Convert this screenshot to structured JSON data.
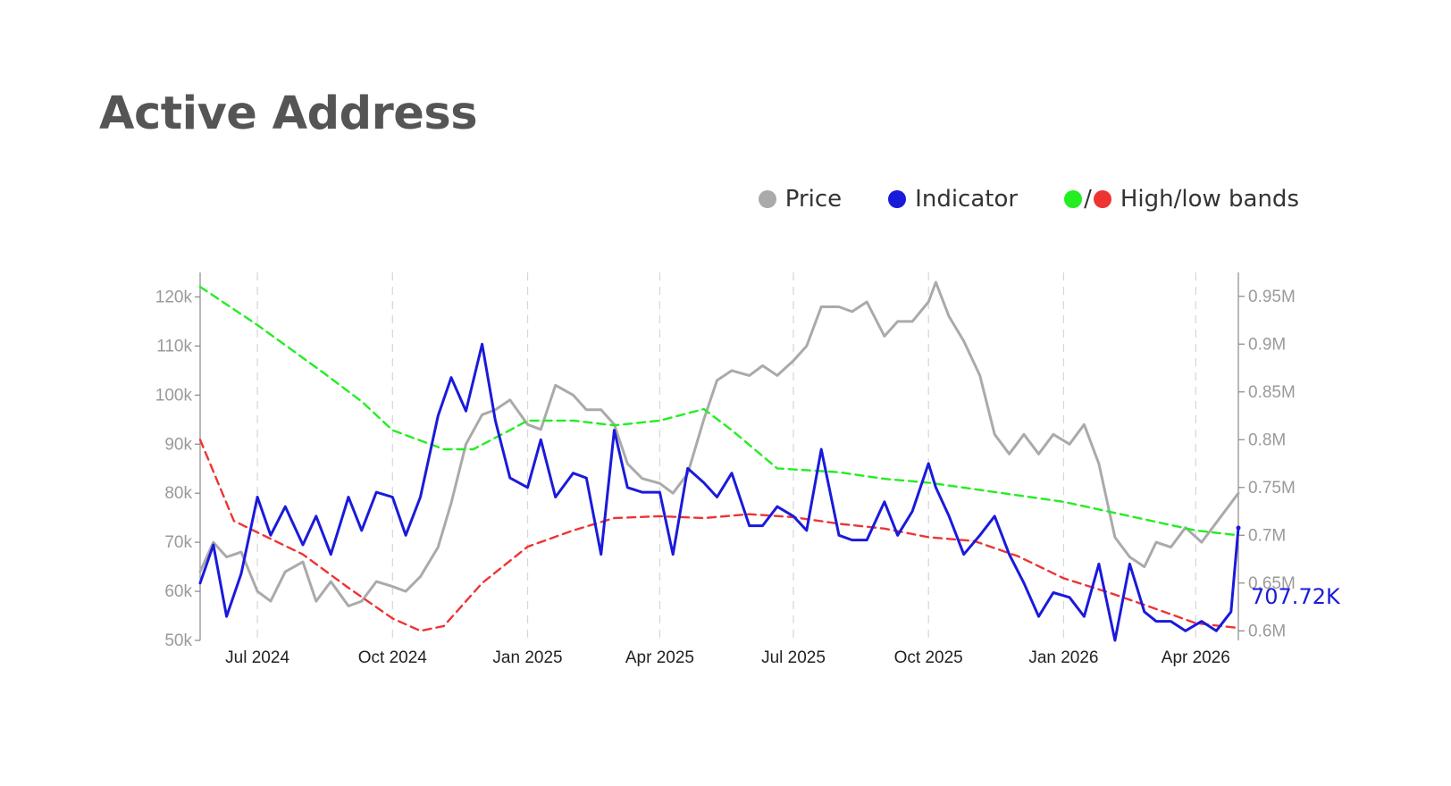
{
  "chart_data": {
    "type": "line",
    "title": "Active Address",
    "legend": {
      "placement": "top-right",
      "items": [
        {
          "label": "Price",
          "color": "#aaaaaa"
        },
        {
          "label": "Indicator",
          "color": "#1a1adb"
        },
        {
          "label": "High/low bands",
          "colors": [
            "#22ee22",
            "#ee3333"
          ]
        }
      ]
    },
    "x_ticks": [
      "Jul 2024",
      "Oct 2024",
      "Jan 2025",
      "Apr 2025",
      "Jul 2025",
      "Oct 2025",
      "Jan 2026",
      "Apr 2026"
    ],
    "x_tick_dates": [
      "2024-07-01",
      "2024-10-01",
      "2025-01-01",
      "2025-04-01",
      "2025-07-01",
      "2025-10-01",
      "2026-01-01",
      "2026-04-01"
    ],
    "x_range": [
      "2024-05-23",
      "2026-04-30"
    ],
    "y_left": {
      "ticks": [
        "50k",
        "60k",
        "70k",
        "80k",
        "90k",
        "100k",
        "110k",
        "120k"
      ],
      "tick_values": [
        50000,
        60000,
        70000,
        80000,
        90000,
        100000,
        110000,
        120000
      ],
      "range": [
        50000,
        125000
      ]
    },
    "y_right": {
      "ticks": [
        "0.6M",
        "0.65M",
        "0.7M",
        "0.75M",
        "0.8M",
        "0.85M",
        "0.9M",
        "0.95M"
      ],
      "tick_values": [
        600000,
        650000,
        700000,
        750000,
        800000,
        850000,
        900000,
        950000
      ],
      "range": [
        590000,
        975000
      ]
    },
    "grid": {
      "vertical": true,
      "horizontal": false,
      "style": "dashed"
    },
    "last_value_label": "707.72K",
    "series": [
      {
        "name": "Price",
        "axis": "left",
        "color": "#aaaaaa",
        "x": [
          "2024-05-23",
          "2024-06-01",
          "2024-06-10",
          "2024-06-20",
          "2024-07-01",
          "2024-07-10",
          "2024-07-20",
          "2024-08-01",
          "2024-08-10",
          "2024-08-20",
          "2024-09-01",
          "2024-09-10",
          "2024-09-20",
          "2024-10-01",
          "2024-10-10",
          "2024-10-20",
          "2024-11-01",
          "2024-11-10",
          "2024-11-20",
          "2024-12-01",
          "2024-12-10",
          "2024-12-20",
          "2025-01-01",
          "2025-01-10",
          "2025-01-20",
          "2025-02-01",
          "2025-02-10",
          "2025-02-20",
          "2025-03-01",
          "2025-03-10",
          "2025-03-20",
          "2025-04-01",
          "2025-04-10",
          "2025-04-20",
          "2025-05-01",
          "2025-05-10",
          "2025-05-20",
          "2025-06-01",
          "2025-06-10",
          "2025-06-20",
          "2025-07-01",
          "2025-07-10",
          "2025-07-20",
          "2025-08-01",
          "2025-08-10",
          "2025-08-20",
          "2025-09-01",
          "2025-09-10",
          "2025-09-20",
          "2025-10-01",
          "2025-10-06",
          "2025-10-15",
          "2025-10-25",
          "2025-11-05",
          "2025-11-15",
          "2025-11-25",
          "2025-12-05",
          "2025-12-15",
          "2025-12-25",
          "2026-01-05",
          "2026-01-15",
          "2026-01-25",
          "2026-02-05",
          "2026-02-15",
          "2026-02-25",
          "2026-03-05",
          "2026-03-15",
          "2026-03-25",
          "2026-04-05",
          "2026-04-15",
          "2026-04-25",
          "2026-04-30"
        ],
        "values": [
          64000,
          70000,
          67000,
          68000,
          60000,
          58000,
          64000,
          66000,
          58000,
          62000,
          57000,
          58000,
          62000,
          61000,
          60000,
          63000,
          69000,
          78000,
          90000,
          96000,
          97000,
          99000,
          94000,
          93000,
          102000,
          100000,
          97000,
          97000,
          94000,
          86000,
          83000,
          82000,
          80000,
          84000,
          95000,
          103000,
          105000,
          104000,
          106000,
          104000,
          107000,
          110000,
          118000,
          118000,
          117000,
          119000,
          112000,
          115000,
          115000,
          119000,
          123000,
          116000,
          111000,
          104000,
          92000,
          88000,
          92000,
          88000,
          92000,
          90000,
          94000,
          86000,
          71000,
          67000,
          65000,
          70000,
          69000,
          73000,
          70000,
          74000,
          78000,
          80000
        ]
      },
      {
        "name": "Indicator",
        "axis": "right",
        "color": "#1a1adb",
        "x": [
          "2024-05-23",
          "2024-06-01",
          "2024-06-10",
          "2024-06-20",
          "2024-07-01",
          "2024-07-10",
          "2024-07-20",
          "2024-08-01",
          "2024-08-10",
          "2024-08-20",
          "2024-09-01",
          "2024-09-10",
          "2024-09-20",
          "2024-10-01",
          "2024-10-10",
          "2024-10-20",
          "2024-11-01",
          "2024-11-10",
          "2024-11-20",
          "2024-12-01",
          "2024-12-10",
          "2024-12-20",
          "2025-01-01",
          "2025-01-10",
          "2025-01-20",
          "2025-02-01",
          "2025-02-10",
          "2025-02-20",
          "2025-03-01",
          "2025-03-10",
          "2025-03-20",
          "2025-04-01",
          "2025-04-10",
          "2025-04-20",
          "2025-05-01",
          "2025-05-10",
          "2025-05-20",
          "2025-06-01",
          "2025-06-10",
          "2025-06-20",
          "2025-07-01",
          "2025-07-10",
          "2025-07-20",
          "2025-08-01",
          "2025-08-10",
          "2025-08-20",
          "2025-09-01",
          "2025-09-10",
          "2025-09-20",
          "2025-10-01",
          "2025-10-06",
          "2025-10-15",
          "2025-10-25",
          "2025-11-05",
          "2025-11-15",
          "2025-11-25",
          "2025-12-05",
          "2025-12-15",
          "2025-12-25",
          "2026-01-05",
          "2026-01-15",
          "2026-01-25",
          "2026-02-05",
          "2026-02-15",
          "2026-02-25",
          "2026-03-05",
          "2026-03-15",
          "2026-03-25",
          "2026-04-05",
          "2026-04-15",
          "2026-04-25",
          "2026-04-30"
        ],
        "values": [
          650000,
          690000,
          615000,
          660000,
          740000,
          700000,
          730000,
          690000,
          720000,
          680000,
          740000,
          705000,
          745000,
          740000,
          700000,
          740000,
          825000,
          865000,
          830000,
          900000,
          820000,
          760000,
          750000,
          800000,
          740000,
          765000,
          760000,
          680000,
          810000,
          750000,
          745000,
          745000,
          680000,
          770000,
          755000,
          740000,
          765000,
          710000,
          710000,
          730000,
          720000,
          705000,
          790000,
          700000,
          695000,
          695000,
          735000,
          700000,
          725000,
          775000,
          750000,
          720000,
          680000,
          700000,
          720000,
          680000,
          650000,
          615000,
          640000,
          635000,
          615000,
          670000,
          590000,
          670000,
          620000,
          610000,
          610000,
          600000,
          610000,
          600000,
          620000,
          707720
        ]
      },
      {
        "name": "High band",
        "axis": "right",
        "color": "#22ee22",
        "x": [
          "2024-05-23",
          "2024-07-01",
          "2024-08-15",
          "2024-09-10",
          "2024-10-01",
          "2024-11-05",
          "2024-11-25",
          "2024-12-20",
          "2025-01-01",
          "2025-02-01",
          "2025-03-01",
          "2025-04-01",
          "2025-05-01",
          "2025-05-20",
          "2025-06-20",
          "2025-08-01",
          "2025-09-01",
          "2025-10-01",
          "2026-01-01",
          "2026-04-01",
          "2026-04-30"
        ],
        "values": [
          960000,
          920000,
          870000,
          840000,
          810000,
          790000,
          790000,
          810000,
          820000,
          820000,
          815000,
          820000,
          832000,
          810000,
          770000,
          766000,
          759000,
          755000,
          735000,
          705000,
          700000
        ]
      },
      {
        "name": "Low band",
        "axis": "right",
        "color": "#ee3333",
        "x": [
          "2024-05-23",
          "2024-06-15",
          "2024-07-01",
          "2024-08-01",
          "2024-09-01",
          "2024-10-01",
          "2024-10-20",
          "2024-11-05",
          "2024-12-01",
          "2025-01-01",
          "2025-02-01",
          "2025-03-01",
          "2025-04-01",
          "2025-05-01",
          "2025-06-01",
          "2025-07-01",
          "2025-08-01",
          "2025-09-01",
          "2025-10-01",
          "2025-11-01",
          "2025-12-01",
          "2026-01-01",
          "2026-02-01",
          "2026-03-01",
          "2026-04-01",
          "2026-04-30"
        ],
        "values": [
          800000,
          715000,
          703000,
          680000,
          645000,
          613000,
          600000,
          605000,
          650000,
          688000,
          705000,
          718000,
          720000,
          718000,
          722000,
          719000,
          712000,
          707000,
          698000,
          694000,
          678000,
          655000,
          640000,
          625000,
          608000,
          603000
        ]
      }
    ]
  }
}
